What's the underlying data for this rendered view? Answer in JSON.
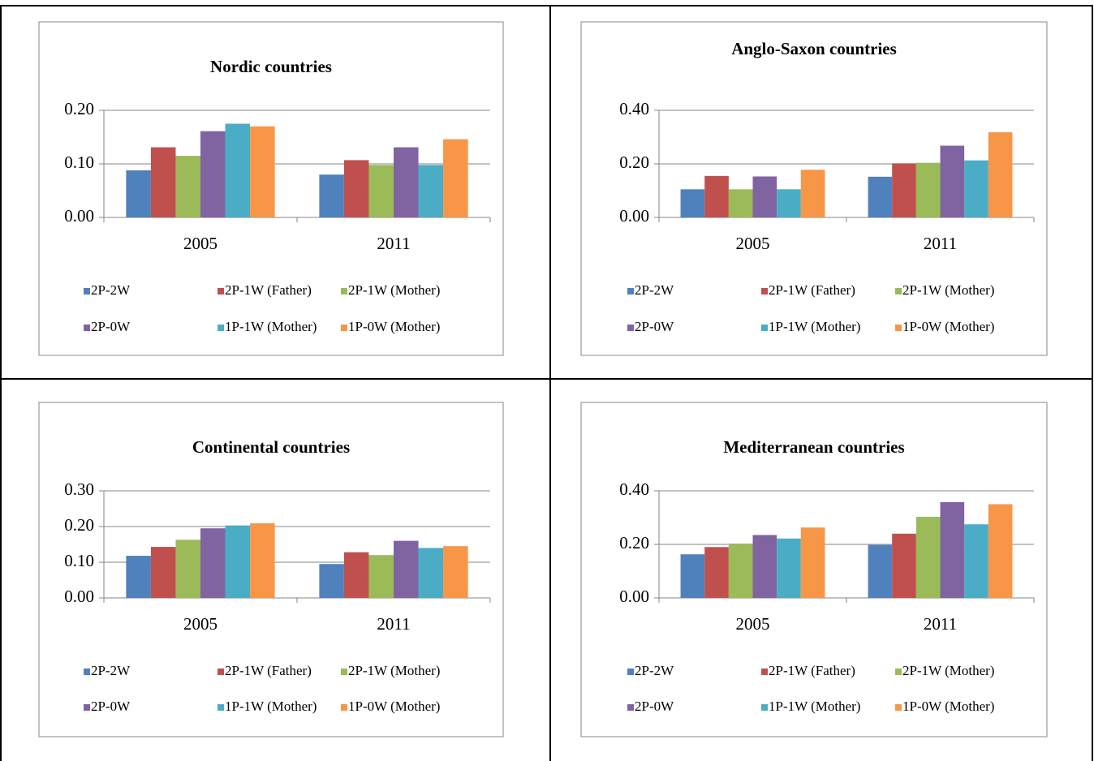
{
  "chart_data": [
    {
      "type": "bar",
      "title": "Nordic countries",
      "categories": [
        "2005",
        "2011"
      ],
      "series": [
        {
          "name": "2P-2W",
          "color": "#4f81bd",
          "values": [
            0.088,
            0.08
          ]
        },
        {
          "name": "2P-1W (Father)",
          "color": "#c0504d",
          "values": [
            0.131,
            0.107
          ]
        },
        {
          "name": "2P-1W (Mother)",
          "color": "#9bbb59",
          "values": [
            0.115,
            0.098
          ]
        },
        {
          "name": "2P-0W",
          "color": "#8064a2",
          "values": [
            0.161,
            0.131
          ]
        },
        {
          "name": "1P-1W (Mother)",
          "color": "#4bacc6",
          "values": [
            0.175,
            0.098
          ]
        },
        {
          "name": "1P-0W (Mother)",
          "color": "#f79646",
          "values": [
            0.17,
            0.146
          ]
        }
      ],
      "ylim": [
        0,
        0.2
      ],
      "yticks": [
        {
          "value": 0,
          "label": "0.00"
        },
        {
          "value": 0.1,
          "label": "0.10"
        },
        {
          "value": 0.2,
          "label": "0.20"
        }
      ],
      "grid": true
    },
    {
      "type": "bar",
      "title": "Anglo-Saxon countries",
      "categories": [
        "2005",
        "2011"
      ],
      "series": [
        {
          "name": "2P-2W",
          "color": "#4f81bd",
          "values": [
            0.105,
            0.152
          ]
        },
        {
          "name": "2P-1W (Father)",
          "color": "#c0504d",
          "values": [
            0.155,
            0.202
          ]
        },
        {
          "name": "2P-1W (Mother)",
          "color": "#9bbb59",
          "values": [
            0.105,
            0.204
          ]
        },
        {
          "name": "2P-0W",
          "color": "#8064a2",
          "values": [
            0.153,
            0.268
          ]
        },
        {
          "name": "1P-1W (Mother)",
          "color": "#4bacc6",
          "values": [
            0.105,
            0.213
          ]
        },
        {
          "name": "1P-0W (Mother)",
          "color": "#f79646",
          "values": [
            0.178,
            0.318
          ]
        }
      ],
      "ylim": [
        0,
        0.4
      ],
      "yticks": [
        {
          "value": 0,
          "label": "0.00"
        },
        {
          "value": 0.2,
          "label": "0.20"
        },
        {
          "value": 0.4,
          "label": "0.40"
        }
      ],
      "grid": true
    },
    {
      "type": "bar",
      "title": "Continental countries",
      "categories": [
        "2005",
        "2011"
      ],
      "series": [
        {
          "name": "2P-2W",
          "color": "#4f81bd",
          "values": [
            0.118,
            0.095
          ]
        },
        {
          "name": "2P-1W (Father)",
          "color": "#c0504d",
          "values": [
            0.143,
            0.128
          ]
        },
        {
          "name": "2P-1W (Mother)",
          "color": "#9bbb59",
          "values": [
            0.163,
            0.12
          ]
        },
        {
          "name": "2P-0W",
          "color": "#8064a2",
          "values": [
            0.195,
            0.16
          ]
        },
        {
          "name": "1P-1W (Mother)",
          "color": "#4bacc6",
          "values": [
            0.203,
            0.14
          ]
        },
        {
          "name": "1P-0W (Mother)",
          "color": "#f79646",
          "values": [
            0.209,
            0.145
          ]
        }
      ],
      "ylim": [
        0,
        0.3
      ],
      "yticks": [
        {
          "value": 0,
          "label": "0.00"
        },
        {
          "value": 0.1,
          "label": "0.10"
        },
        {
          "value": 0.2,
          "label": "0.20"
        },
        {
          "value": 0.3,
          "label": "0.30"
        }
      ],
      "grid": true
    },
    {
      "type": "bar",
      "title": "Mediterranean countries",
      "categories": [
        "2005",
        "2011"
      ],
      "series": [
        {
          "name": "2P-2W",
          "color": "#4f81bd",
          "values": [
            0.163,
            0.198
          ]
        },
        {
          "name": "2P-1W (Father)",
          "color": "#c0504d",
          "values": [
            0.19,
            0.24
          ]
        },
        {
          "name": "2P-1W (Mother)",
          "color": "#9bbb59",
          "values": [
            0.203,
            0.303
          ]
        },
        {
          "name": "2P-0W",
          "color": "#8064a2",
          "values": [
            0.235,
            0.358
          ]
        },
        {
          "name": "1P-1W (Mother)",
          "color": "#4bacc6",
          "values": [
            0.222,
            0.275
          ]
        },
        {
          "name": "1P-0W (Mother)",
          "color": "#f79646",
          "values": [
            0.263,
            0.35
          ]
        }
      ],
      "ylim": [
        0,
        0.4
      ],
      "yticks": [
        {
          "value": 0,
          "label": "0.00"
        },
        {
          "value": 0.2,
          "label": "0.20"
        },
        {
          "value": 0.4,
          "label": "0.40"
        }
      ],
      "grid": true
    }
  ]
}
